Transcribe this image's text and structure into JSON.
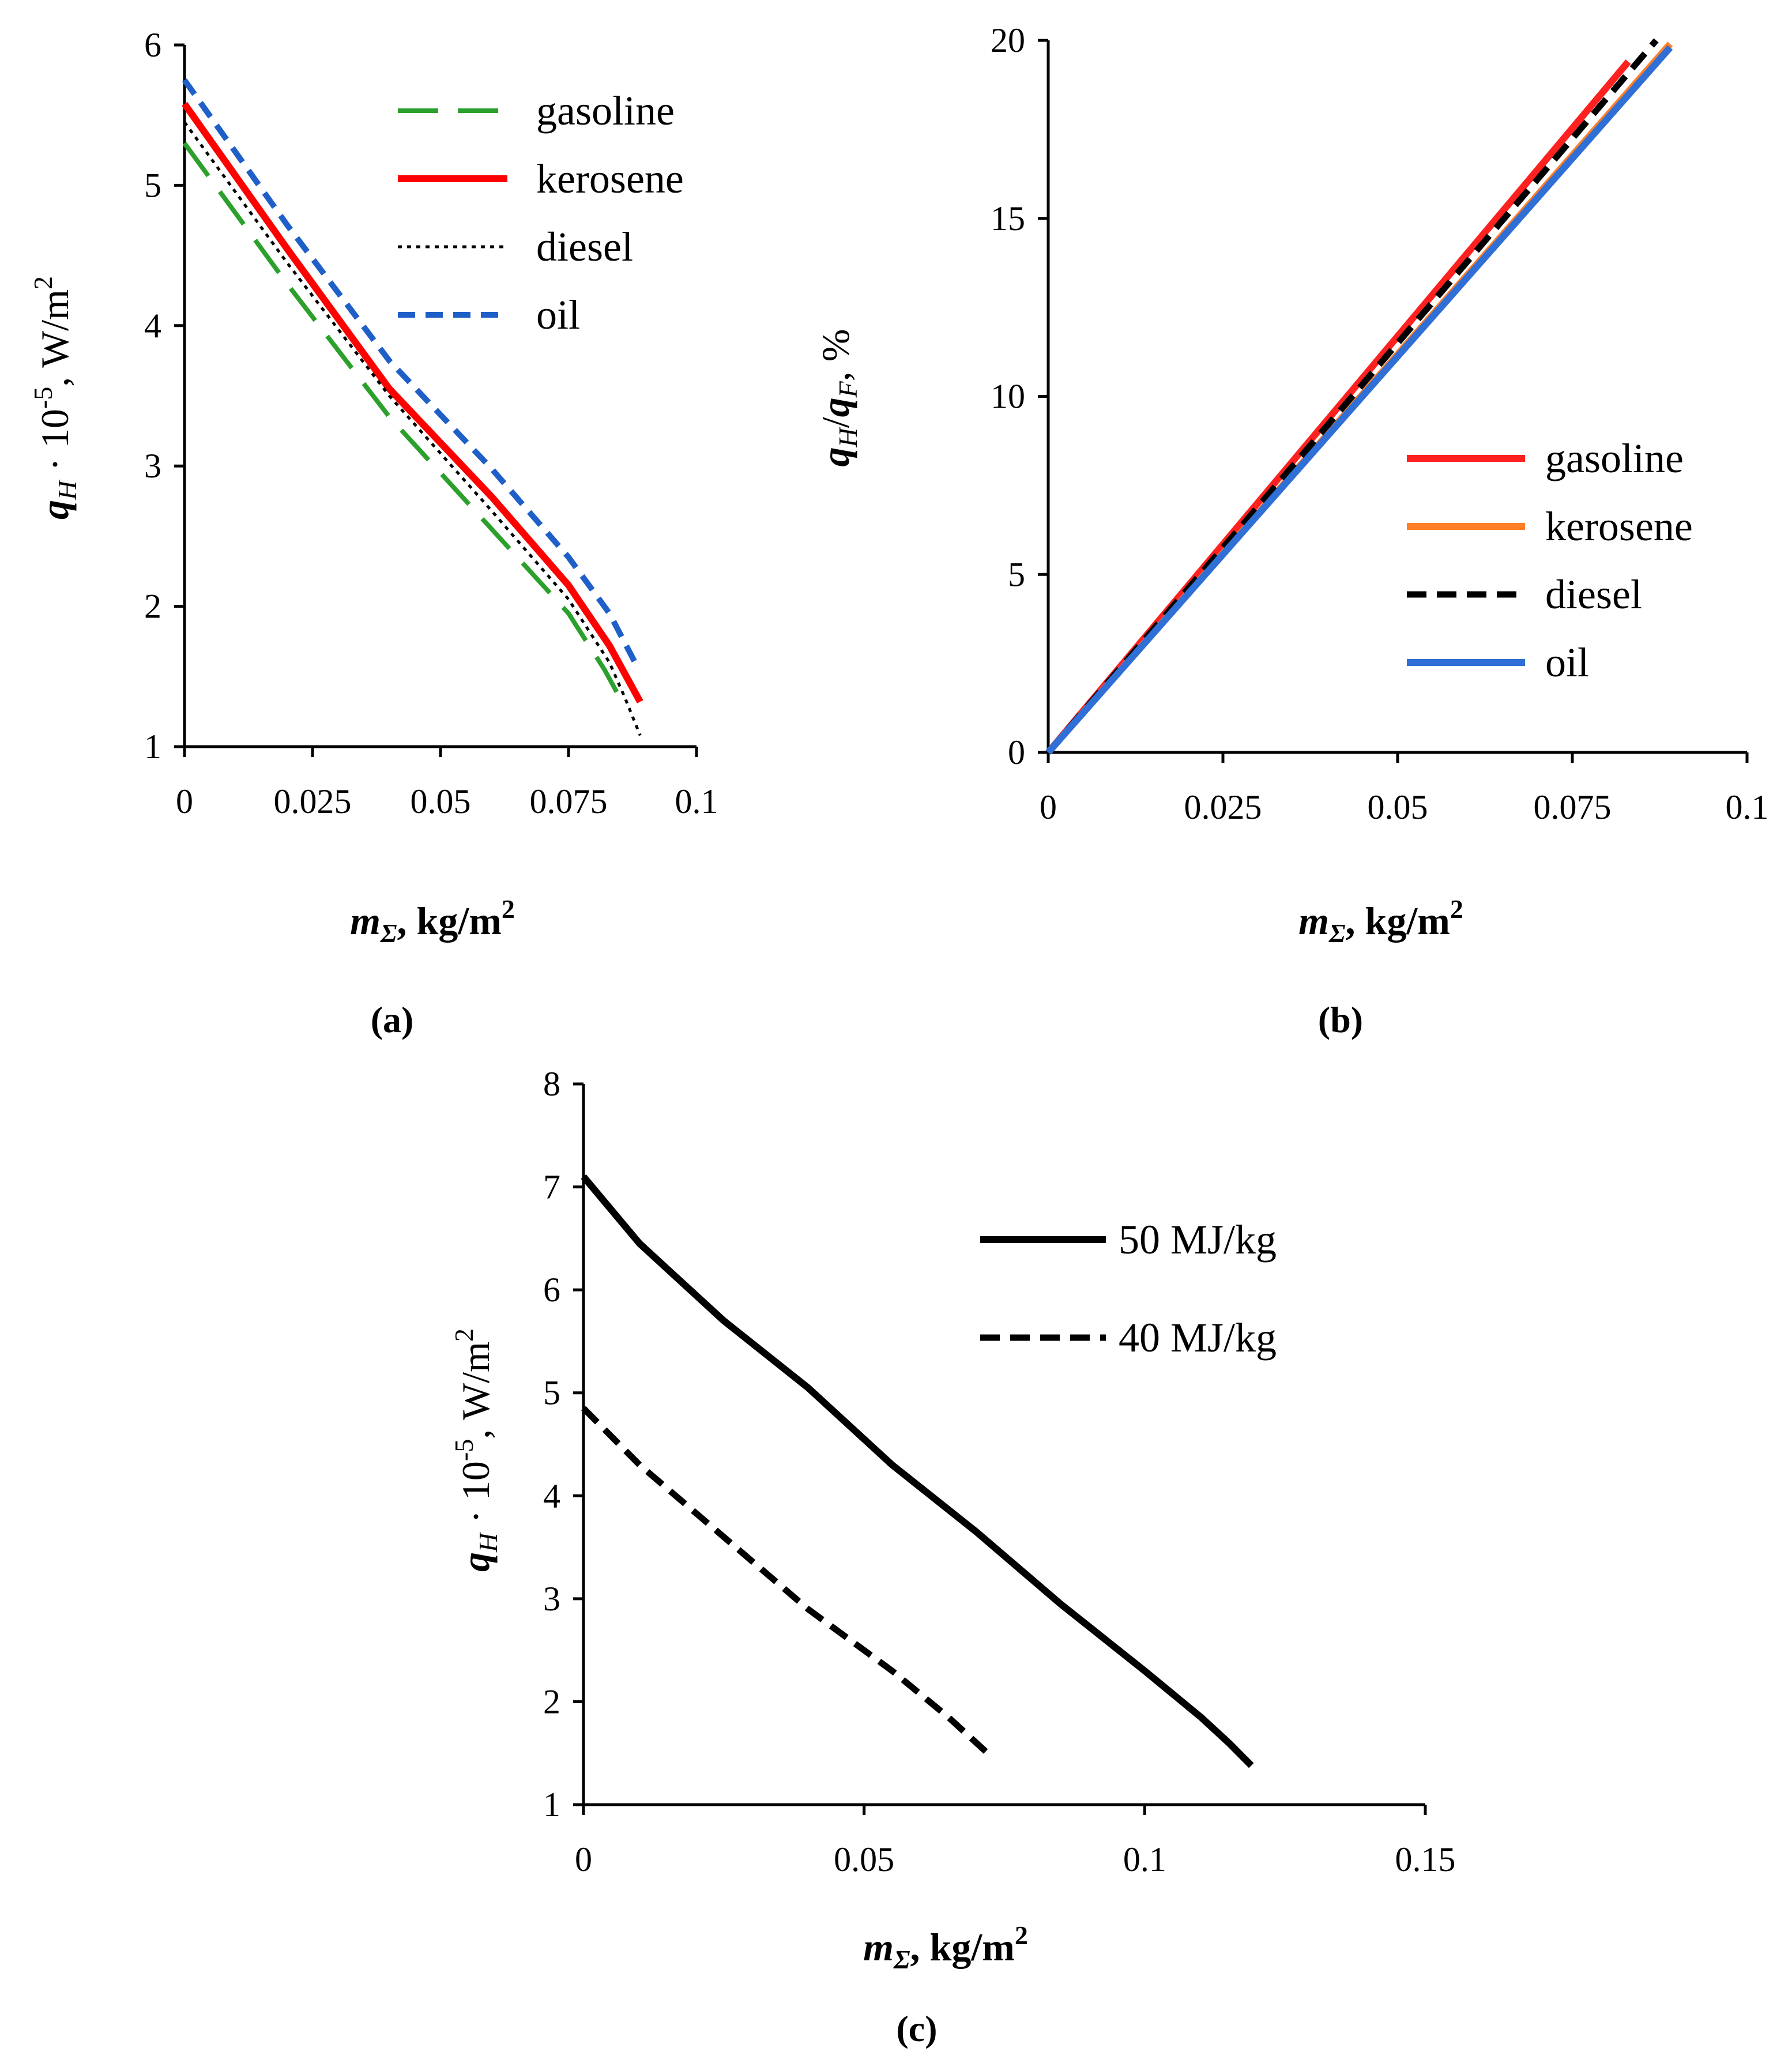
{
  "chart_data": [
    {
      "type": "line",
      "panel": "a",
      "caption": "(a)",
      "ylabel": {
        "var": "q",
        "sub": "H",
        "dot": "·",
        "mid": "10",
        "sup": "-5",
        "unit": ", W/m",
        "unit_sup": "2"
      },
      "xlabel": {
        "var": "m",
        "sub": "Σ",
        "unit": ", kg/m",
        "unit_sup": "2"
      },
      "xlim": [
        0,
        0.1
      ],
      "ylim": [
        1,
        6
      ],
      "xticks": [
        0,
        0.025,
        0.05,
        0.075,
        0.1
      ],
      "xtick_labels": [
        "0",
        "0.025",
        "0.05",
        "0.075",
        "0.1"
      ],
      "yticks": [
        1,
        2,
        3,
        4,
        5,
        6
      ],
      "ytick_labels": [
        "1",
        "2",
        "3",
        "4",
        "5",
        "6"
      ],
      "legend_position": "top-right",
      "series": [
        {
          "name": "gasoline",
          "color": "#2ca02c",
          "dash": "long",
          "points": [
            [
              0,
              5.3
            ],
            [
              0.02,
              4.3
            ],
            [
              0.04,
              3.35
            ],
            [
              0.06,
              2.55
            ],
            [
              0.075,
              1.95
            ],
            [
              0.082,
              1.55
            ],
            [
              0.085,
              1.35
            ]
          ]
        },
        {
          "name": "kerosene",
          "color": "#ff0000",
          "dash": "solid",
          "points": [
            [
              0,
              5.58
            ],
            [
              0.02,
              4.55
            ],
            [
              0.04,
              3.55
            ],
            [
              0.06,
              2.78
            ],
            [
              0.075,
              2.15
            ],
            [
              0.083,
              1.72
            ],
            [
              0.089,
              1.32
            ]
          ]
        },
        {
          "name": "diesel",
          "color": "#000000",
          "dash": "dot",
          "points": [
            [
              0,
              5.45
            ],
            [
              0.02,
              4.45
            ],
            [
              0.04,
              3.5
            ],
            [
              0.06,
              2.68
            ],
            [
              0.075,
              2.05
            ],
            [
              0.083,
              1.6
            ],
            [
              0.086,
              1.35
            ],
            [
              0.089,
              1.08
            ]
          ]
        },
        {
          "name": "oil",
          "color": "#1f5fc8",
          "dash": "short",
          "points": [
            [
              0,
              5.75
            ],
            [
              0.02,
              4.72
            ],
            [
              0.04,
              3.75
            ],
            [
              0.06,
              2.98
            ],
            [
              0.075,
              2.35
            ],
            [
              0.083,
              1.95
            ],
            [
              0.088,
              1.6
            ]
          ]
        }
      ]
    },
    {
      "type": "line",
      "panel": "b",
      "caption": "(b)",
      "ylabel": {
        "var1": "q",
        "sub1": "H",
        "slash": "/",
        "var2": "q",
        "sub2": "F",
        "unit": ", %"
      },
      "xlabel": {
        "var": "m",
        "sub": "Σ",
        "unit": ", kg/m",
        "unit_sup": "2"
      },
      "xlim": [
        0,
        0.1
      ],
      "ylim": [
        0,
        20
      ],
      "xticks": [
        0,
        0.025,
        0.05,
        0.075,
        0.1
      ],
      "xtick_labels": [
        "0",
        "0.025",
        "0.05",
        "0.075",
        "0.1"
      ],
      "yticks": [
        0,
        5,
        10,
        15,
        20
      ],
      "ytick_labels": [
        "0",
        "5",
        "10",
        "15",
        "20"
      ],
      "legend_position": "center-right",
      "series": [
        {
          "name": "gasoline",
          "color": "#ff2020",
          "dash": "solid",
          "points": [
            [
              0,
              0
            ],
            [
              0.083,
              19.4
            ]
          ]
        },
        {
          "name": "kerosene",
          "color": "#ff7f27",
          "dash": "solid",
          "points": [
            [
              0,
              0
            ],
            [
              0.089,
              19.9
            ]
          ]
        },
        {
          "name": "diesel",
          "color": "#000000",
          "dash": "dash",
          "points": [
            [
              0,
              0
            ],
            [
              0.087,
              20.0
            ]
          ]
        },
        {
          "name": "oil",
          "color": "#2f6fd6",
          "dash": "solid",
          "points": [
            [
              0,
              0
            ],
            [
              0.089,
              19.8
            ]
          ]
        }
      ]
    },
    {
      "type": "line",
      "panel": "c",
      "caption": "(c)",
      "ylabel": {
        "var": "q",
        "sub": "H",
        "dot": "·",
        "mid": "10",
        "sup": "-5",
        "unit": ", W/m",
        "unit_sup": "2"
      },
      "xlabel": {
        "var": "m",
        "sub": "Σ",
        "unit": ", kg/m",
        "unit_sup": "2"
      },
      "xlim": [
        0,
        0.15
      ],
      "ylim": [
        1,
        8
      ],
      "xticks": [
        0,
        0.05,
        0.1,
        0.15
      ],
      "xtick_labels": [
        "0",
        "0.05",
        "0.1",
        "0.15"
      ],
      "yticks": [
        1,
        2,
        3,
        4,
        5,
        6,
        7,
        8
      ],
      "ytick_labels": [
        "1",
        "2",
        "3",
        "4",
        "5",
        "6",
        "7",
        "8"
      ],
      "legend_position": "top-right",
      "series": [
        {
          "name": "50 MJ/kg",
          "color": "#000000",
          "dash": "solid",
          "points": [
            [
              0,
              7.1
            ],
            [
              0.01,
              6.45
            ],
            [
              0.025,
              5.7
            ],
            [
              0.04,
              5.05
            ],
            [
              0.055,
              4.3
            ],
            [
              0.07,
              3.65
            ],
            [
              0.085,
              2.95
            ],
            [
              0.1,
              2.3
            ],
            [
              0.11,
              1.85
            ],
            [
              0.115,
              1.6
            ],
            [
              0.119,
              1.38
            ]
          ]
        },
        {
          "name": "40 MJ/kg",
          "color": "#000000",
          "dash": "dash",
          "points": [
            [
              0,
              4.85
            ],
            [
              0.01,
              4.3
            ],
            [
              0.025,
              3.6
            ],
            [
              0.04,
              2.9
            ],
            [
              0.055,
              2.3
            ],
            [
              0.065,
              1.85
            ],
            [
              0.072,
              1.5
            ]
          ]
        }
      ]
    }
  ]
}
